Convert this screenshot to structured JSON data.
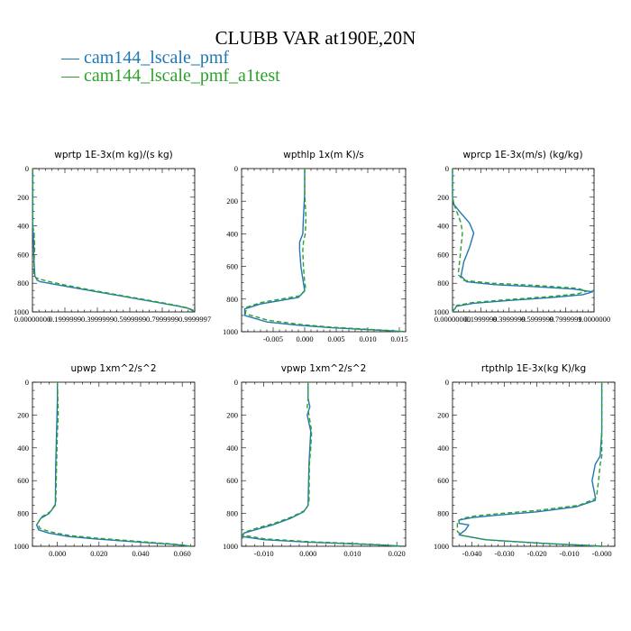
{
  "figure": {
    "title": "CLUBB VAR at190E,20N",
    "legend": [
      {
        "label": "— cam144_lscale_pmf",
        "color": "#1f77b4"
      },
      {
        "label": "— cam144_lscale_pmf_a1test",
        "color": "#2ca02c"
      }
    ]
  },
  "chart_data": [
    {
      "type": "line",
      "title": "wprtp  1E-3x(m kg)/(s kg)",
      "xlim": [
        0,
        1.0
      ],
      "ylim": [
        1000,
        0
      ],
      "yticks": [
        0,
        200,
        400,
        600,
        800,
        1000
      ],
      "xticks": [
        0,
        0.2,
        0.4,
        0.6,
        0.8,
        1.0
      ],
      "xtick_labels": [
        "0.00000000",
        "0.1999999",
        "0.3999999",
        "0.5999999",
        "0.7999999",
        "0.9999997"
      ],
      "series": [
        {
          "name": "cam144_lscale_pmf",
          "color": "#1f77b4",
          "dashed": false,
          "x": [
            0.002,
            0.002,
            0.002,
            0.004,
            0.006,
            0.008,
            0.008,
            0.01,
            0.015,
            0.03,
            0.05,
            0.1,
            0.2,
            0.35,
            0.5,
            0.65,
            0.8,
            0.9,
            0.96,
            0.985,
            0.995
          ],
          "y": [
            0,
            150,
            400,
            450,
            500,
            550,
            600,
            650,
            750,
            780,
            790,
            800,
            820,
            850,
            880,
            910,
            940,
            960,
            975,
            990,
            1000
          ]
        },
        {
          "name": "cam144_lscale_pmf_a1test",
          "color": "#2ca02c",
          "dashed": true,
          "x": [
            0.002,
            0.002,
            0.002,
            0.01,
            0.012,
            0.014,
            0.012,
            0.01,
            0.008,
            0.02,
            0.04,
            0.09,
            0.19,
            0.35,
            0.5,
            0.65,
            0.8,
            0.9,
            0.96,
            0.99,
            1.0
          ],
          "y": [
            0,
            150,
            400,
            450,
            500,
            550,
            600,
            650,
            740,
            760,
            770,
            785,
            810,
            845,
            876,
            906,
            936,
            958,
            973,
            988,
            1000
          ]
        }
      ]
    },
    {
      "type": "line",
      "title": "wpthlp  1x(m K)/s",
      "xlim": [
        -0.01,
        0.016
      ],
      "ylim": [
        1000,
        0
      ],
      "yticks": [
        0,
        200,
        400,
        600,
        800,
        1000
      ],
      "xticks": [
        -0.005,
        0.0,
        0.005,
        0.01,
        0.015
      ],
      "xtick_labels": [
        "-0.005",
        "0.000",
        "0.005",
        "0.010",
        "0.015"
      ],
      "series": [
        {
          "name": "cam144_lscale_pmf",
          "color": "#1f77b4",
          "dashed": false,
          "x": [
            0.0,
            0.0,
            -0.0002,
            -0.0003,
            -0.0008,
            -0.0008,
            -0.0006,
            -0.0002,
            0.0,
            -0.001,
            -0.004,
            -0.007,
            -0.0095,
            -0.0095,
            -0.006,
            -0.001,
            0.004,
            0.009,
            0.013,
            0.016
          ],
          "y": [
            0,
            150,
            300,
            400,
            450,
            500,
            600,
            700,
            750,
            790,
            810,
            830,
            860,
            900,
            940,
            960,
            975,
            985,
            993,
            1000
          ]
        },
        {
          "name": "cam144_lscale_pmf_a1test",
          "color": "#2ca02c",
          "dashed": true,
          "x": [
            0.0,
            0.0,
            0.0002,
            0.0001,
            -0.0002,
            -0.0003,
            -0.0002,
            0.0,
            0.0002,
            -0.0008,
            -0.0038,
            -0.0068,
            -0.0092,
            -0.0094,
            -0.0058,
            -0.0008,
            0.0042,
            0.0092,
            0.0132,
            0.016
          ],
          "y": [
            0,
            150,
            300,
            400,
            450,
            500,
            600,
            700,
            740,
            780,
            800,
            820,
            850,
            890,
            930,
            955,
            972,
            983,
            992,
            1000
          ]
        }
      ]
    },
    {
      "type": "line",
      "title": "wprcp  1E-3x(m/s) (kg/kg)",
      "xlim": [
        0,
        1.0
      ],
      "ylim": [
        1000,
        0
      ],
      "yticks": [
        0,
        200,
        400,
        600,
        800,
        1000
      ],
      "xticks": [
        0,
        0.2,
        0.4,
        0.6,
        0.8,
        1.0
      ],
      "xtick_labels": [
        "0.00000000",
        "0.1999999",
        "0.3999999",
        "0.5999999",
        "0.7999999",
        "1.0000000"
      ],
      "series": [
        {
          "name": "cam144_lscale_pmf",
          "color": "#1f77b4",
          "dashed": false,
          "x": [
            0.0,
            0.0,
            0.01,
            0.05,
            0.12,
            0.15,
            0.12,
            0.08,
            0.06,
            0.1,
            0.3,
            0.6,
            0.85,
            0.99,
            0.92,
            0.7,
            0.4,
            0.15,
            0.03,
            0.0
          ],
          "y": [
            0,
            200,
            250,
            300,
            380,
            450,
            550,
            650,
            750,
            790,
            810,
            825,
            840,
            860,
            880,
            900,
            920,
            940,
            960,
            1000
          ]
        },
        {
          "name": "cam144_lscale_pmf_a1test",
          "color": "#2ca02c",
          "dashed": true,
          "x": [
            0.0,
            0.0,
            0.01,
            0.03,
            0.06,
            0.07,
            0.06,
            0.05,
            0.04,
            0.08,
            0.28,
            0.58,
            0.88,
            0.95,
            0.88,
            0.66,
            0.38,
            0.14,
            0.03,
            0.0
          ],
          "y": [
            0,
            200,
            250,
            300,
            380,
            450,
            550,
            650,
            740,
            780,
            800,
            815,
            835,
            855,
            875,
            895,
            915,
            935,
            955,
            1000
          ]
        }
      ]
    },
    {
      "type": "line",
      "title": "upwp  1xm^2/s^2",
      "xlim": [
        -0.012,
        0.066
      ],
      "ylim": [
        1000,
        0
      ],
      "yticks": [
        0,
        200,
        400,
        600,
        800,
        1000
      ],
      "xticks": [
        0.0,
        0.02,
        0.04,
        0.06
      ],
      "xtick_labels": [
        "0.000",
        "0.020",
        "0.040",
        "0.060"
      ],
      "series": [
        {
          "name": "cam144_lscale_pmf",
          "color": "#1f77b4",
          "dashed": false,
          "x": [
            0.0,
            0.0,
            -0.0002,
            -0.0004,
            -0.0006,
            -0.0008,
            -0.001,
            -0.004,
            -0.008,
            -0.01,
            -0.009,
            -0.004,
            0.005,
            0.018,
            0.032,
            0.045,
            0.055,
            0.061,
            0.064
          ],
          "y": [
            0,
            100,
            200,
            300,
            400,
            500,
            750,
            800,
            830,
            870,
            900,
            920,
            940,
            955,
            968,
            980,
            988,
            995,
            1000
          ]
        },
        {
          "name": "cam144_lscale_pmf_a1test",
          "color": "#2ca02c",
          "dashed": true,
          "x": [
            0.0,
            0.0002,
            0.0004,
            0.0,
            -0.0002,
            -0.0004,
            -0.0008,
            -0.0035,
            -0.0075,
            -0.0095,
            -0.0085,
            -0.0035,
            0.0055,
            0.0185,
            0.0325,
            0.0455,
            0.0555,
            0.0615,
            0.064
          ],
          "y": [
            0,
            100,
            200,
            300,
            400,
            500,
            740,
            790,
            820,
            860,
            890,
            912,
            934,
            950,
            964,
            977,
            986,
            994,
            1000
          ]
        }
      ]
    },
    {
      "type": "line",
      "title": "vpwp  1xm^2/s^2",
      "xlim": [
        -0.015,
        0.022
      ],
      "ylim": [
        1000,
        0
      ],
      "yticks": [
        0,
        200,
        400,
        600,
        800,
        1000
      ],
      "xticks": [
        -0.01,
        0.0,
        0.01,
        0.02
      ],
      "xtick_labels": [
        "-0.010",
        "0.000",
        "0.010",
        "0.020"
      ],
      "series": [
        {
          "name": "cam144_lscale_pmf",
          "color": "#1f77b4",
          "dashed": false,
          "x": [
            0.0,
            0.0,
            0.0004,
            -0.0002,
            0.0006,
            0.0004,
            0.0002,
            0.0,
            -0.001,
            -0.004,
            -0.008,
            -0.012,
            -0.0145,
            -0.015,
            -0.01,
            0.0,
            0.01,
            0.017,
            0.021
          ],
          "y": [
            0,
            100,
            150,
            200,
            300,
            400,
            500,
            750,
            790,
            830,
            870,
            900,
            920,
            940,
            960,
            975,
            985,
            993,
            1000
          ]
        },
        {
          "name": "cam144_lscale_pmf_a1test",
          "color": "#2ca02c",
          "dashed": true,
          "x": [
            0.0,
            0.0,
            -0.0002,
            0.0002,
            0.0008,
            0.0006,
            0.0003,
            0.0002,
            -0.0006,
            -0.0036,
            -0.0076,
            -0.0116,
            -0.0141,
            -0.0148,
            -0.0098,
            0.0002,
            0.0102,
            0.0172,
            0.021
          ],
          "y": [
            0,
            100,
            150,
            200,
            300,
            400,
            500,
            740,
            780,
            820,
            860,
            890,
            912,
            932,
            955,
            972,
            983,
            992,
            1000
          ]
        }
      ]
    },
    {
      "type": "line",
      "title": "rtpthlp  1E-3x(kg K)/kg",
      "xlim": [
        -0.046,
        0.004
      ],
      "ylim": [
        1000,
        0
      ],
      "yticks": [
        0,
        200,
        400,
        600,
        800,
        1000
      ],
      "xticks": [
        -0.04,
        -0.03,
        -0.02,
        -0.01,
        0.0
      ],
      "xtick_labels": [
        "-0.040",
        "-0.030",
        "-0.020",
        "-0.010",
        "-0.000"
      ],
      "series": [
        {
          "name": "cam144_lscale_pmf",
          "color": "#1f77b4",
          "dashed": false,
          "x": [
            0.0,
            0.0,
            -0.0005,
            -0.002,
            -0.003,
            -0.002,
            -0.002,
            -0.008,
            -0.02,
            -0.032,
            -0.04,
            -0.044,
            -0.044,
            -0.041,
            -0.042,
            -0.044,
            -0.036,
            -0.02,
            -0.005,
            0.0
          ],
          "y": [
            0,
            300,
            450,
            500,
            600,
            700,
            720,
            760,
            790,
            810,
            825,
            840,
            860,
            870,
            900,
            930,
            960,
            980,
            995,
            1000
          ]
        },
        {
          "name": "cam144_lscale_pmf_a1test",
          "color": "#2ca02c",
          "dashed": true,
          "x": [
            0.0,
            0.0,
            0.0,
            -0.0005,
            -0.001,
            -0.0015,
            -0.002,
            -0.007,
            -0.019,
            -0.031,
            -0.039,
            -0.043,
            -0.0445,
            -0.0445,
            -0.0445,
            -0.043,
            -0.035,
            -0.019,
            -0.004,
            0.0
          ],
          "y": [
            0,
            300,
            450,
            500,
            600,
            680,
            710,
            750,
            780,
            800,
            815,
            830,
            850,
            880,
            910,
            935,
            962,
            982,
            995,
            1000
          ]
        }
      ]
    }
  ]
}
